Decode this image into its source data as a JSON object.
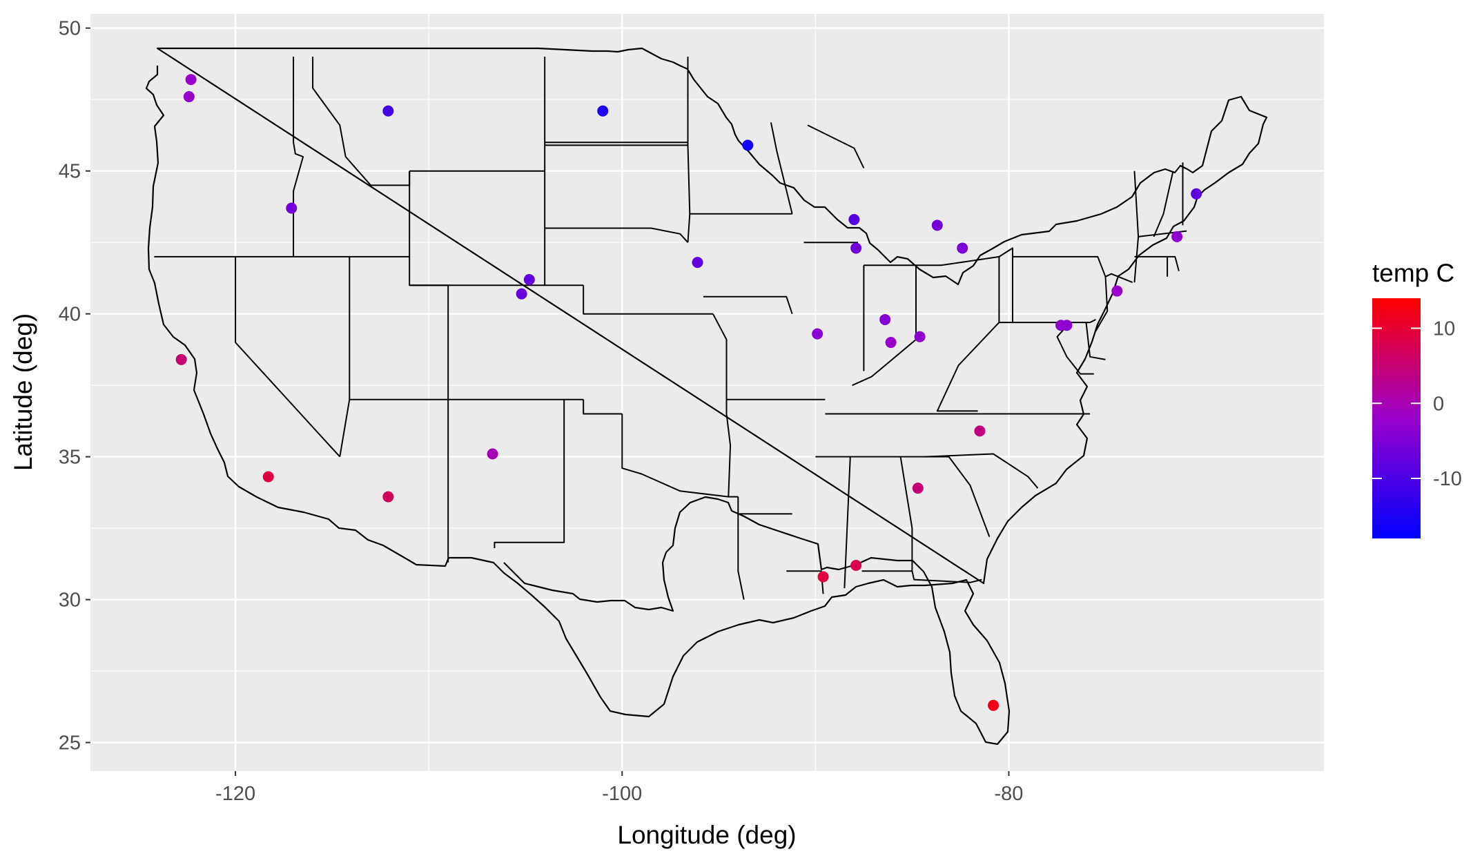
{
  "chart_data": {
    "type": "scatter",
    "xlabel": "Longitude (deg)",
    "ylabel": "Latitude (deg)",
    "xlim": [
      -127.5,
      -63.7
    ],
    "ylim": [
      24.0,
      50.5
    ],
    "xticks": [
      -120,
      -100,
      -80
    ],
    "xtick_labels": [
      "-120",
      "-100",
      "-80"
    ],
    "yticks": [
      25,
      30,
      35,
      40,
      45,
      50
    ],
    "ytick_labels": [
      "25",
      "30",
      "35",
      "40",
      "45",
      "50"
    ],
    "grid": true,
    "background": "#ebebeb",
    "gridline_color": "#ffffff",
    "basemap": "conterminous United States state boundaries",
    "color_variable": "temp C",
    "legend": {
      "title": "temp C",
      "position": "right",
      "type": "colorbar",
      "low_color": "#0000ff",
      "high_color": "#ff0000",
      "range": [
        -18,
        14
      ],
      "ticks": [
        10,
        0,
        -10
      ],
      "tick_labels": [
        "10",
        "0",
        "-10"
      ]
    },
    "points": [
      {
        "x": -122.3,
        "y": 48.2,
        "value": -2
      },
      {
        "x": -122.4,
        "y": 47.6,
        "value": -2
      },
      {
        "x": -117.1,
        "y": 43.7,
        "value": -6
      },
      {
        "x": -122.8,
        "y": 38.4,
        "value": 5
      },
      {
        "x": -118.3,
        "y": 34.3,
        "value": 9
      },
      {
        "x": -112.1,
        "y": 47.1,
        "value": -11
      },
      {
        "x": -112.1,
        "y": 33.6,
        "value": 7
      },
      {
        "x": -101.0,
        "y": 47.1,
        "value": -15
      },
      {
        "x": -93.5,
        "y": 45.9,
        "value": -16
      },
      {
        "x": -104.8,
        "y": 41.2,
        "value": -8
      },
      {
        "x": -105.2,
        "y": 40.7,
        "value": -7
      },
      {
        "x": -106.7,
        "y": 35.1,
        "value": 0
      },
      {
        "x": -96.1,
        "y": 41.8,
        "value": -8
      },
      {
        "x": -89.9,
        "y": 39.3,
        "value": -4
      },
      {
        "x": -88.0,
        "y": 43.3,
        "value": -9
      },
      {
        "x": -87.9,
        "y": 42.3,
        "value": -6
      },
      {
        "x": -86.4,
        "y": 39.8,
        "value": -4
      },
      {
        "x": -86.1,
        "y": 39.0,
        "value": -2
      },
      {
        "x": -84.6,
        "y": 39.2,
        "value": -3
      },
      {
        "x": -83.7,
        "y": 43.1,
        "value": -6
      },
      {
        "x": -82.4,
        "y": 42.3,
        "value": -5
      },
      {
        "x": -81.5,
        "y": 35.9,
        "value": 4
      },
      {
        "x": -84.7,
        "y": 33.9,
        "value": 5
      },
      {
        "x": -89.6,
        "y": 30.8,
        "value": 9
      },
      {
        "x": -87.9,
        "y": 31.2,
        "value": 8
      },
      {
        "x": -80.8,
        "y": 26.3,
        "value": 12
      },
      {
        "x": -77.3,
        "y": 39.6,
        "value": -3
      },
      {
        "x": -77.0,
        "y": 39.6,
        "value": -3
      },
      {
        "x": -74.4,
        "y": 40.8,
        "value": -2
      },
      {
        "x": -71.3,
        "y": 42.7,
        "value": -3
      },
      {
        "x": -70.3,
        "y": 44.2,
        "value": -8
      }
    ]
  }
}
